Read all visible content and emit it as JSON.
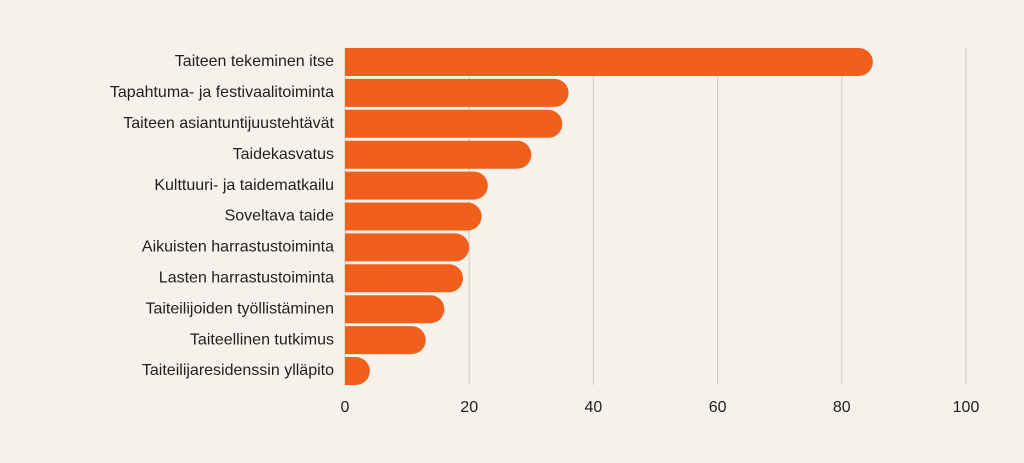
{
  "colors": {
    "background": "#f6f1ea",
    "bar": "#f15f1c",
    "grid": "#cdcac4",
    "text": "#1f1f1f"
  },
  "chart_data": {
    "type": "bar",
    "orientation": "horizontal",
    "title": "",
    "xlabel": "",
    "ylabel": "",
    "categories": [
      "Taiteen tekeminen itse",
      "Tapahtuma- ja festivaalitoiminta",
      "Taiteen asiantuntijuustehtävät",
      "Taidekasvatus",
      "Kulttuuri- ja taidematkailu",
      "Soveltava taide",
      "Aikuisten harrastustoiminta",
      "Lasten harrastustoiminta",
      "Taiteilijoiden työllistäminen",
      "Taiteellinen tutkimus",
      "Taiteilijaresidenssin ylläpito"
    ],
    "values": [
      85,
      36,
      35,
      30,
      23,
      22,
      20,
      19,
      16,
      13,
      4
    ],
    "xlim": [
      0,
      100
    ],
    "xticks": [
      0,
      20,
      40,
      60,
      80,
      100
    ],
    "grid": true,
    "legend": "none"
  }
}
